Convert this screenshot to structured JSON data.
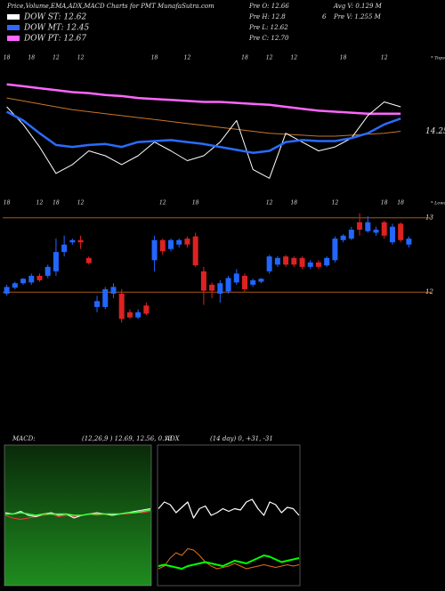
{
  "header": {
    "title": "Price,Volume,EMA,ADX,MACD Charts for PMT MunafaSutra.com"
  },
  "info": [
    "Pre  O: 12.66",
    "Avg V: 0.129 M",
    "Pre  H: 12.8",
    "6",
    "Pre  V: 1.255 M",
    "Pre  L: 12.62",
    "Pre  C: 12.70"
  ],
  "indicators": [
    {
      "label": "DOW ST: 12.62",
      "color": "#ffffff"
    },
    {
      "label": "DOW MT: 12.45",
      "color": "#3366ff"
    },
    {
      "label": "DOW PT: 12.67",
      "color": "#ff66ff"
    }
  ],
  "chart_data": [
    {
      "type": "line",
      "annotation": "* Tops",
      "x": [
        0,
        2,
        4,
        6,
        8,
        10,
        12,
        14,
        16,
        18,
        20,
        22,
        24,
        26,
        28,
        30,
        32,
        34,
        36,
        38,
        40,
        42,
        44,
        46,
        48
      ],
      "xlim": [
        -0.5,
        49.5
      ],
      "xticks": [
        {
          "value": 0,
          "label": "18"
        },
        {
          "value": 3,
          "label": "18"
        },
        {
          "value": 6,
          "label": "12"
        },
        {
          "value": 9,
          "label": "12"
        },
        {
          "value": 18,
          "label": "18"
        },
        {
          "value": 22,
          "label": "12"
        },
        {
          "value": 29,
          "label": "18"
        },
        {
          "value": 32,
          "label": "12"
        },
        {
          "value": 35,
          "label": "12"
        },
        {
          "value": 41,
          "label": "18"
        },
        {
          "value": 46,
          "label": "12"
        }
      ],
      "ylim": [
        13.5,
        15
      ],
      "yticks": [
        14.25
      ],
      "grid": false,
      "series": [
        {
          "color": "#ff66ff",
          "width": 2.5,
          "values": [
            14.73,
            14.71,
            14.69,
            14.67,
            14.65,
            14.64,
            14.62,
            14.61,
            14.59,
            14.58,
            14.57,
            14.56,
            14.55,
            14.55,
            14.54,
            14.53,
            14.52,
            14.5,
            14.48,
            14.46,
            14.45,
            14.44,
            14.43,
            14.43,
            14.43
          ]
        },
        {
          "color": "#c8762a",
          "width": 1,
          "values": [
            14.59,
            14.56,
            14.53,
            14.5,
            14.47,
            14.45,
            14.43,
            14.41,
            14.39,
            14.37,
            14.35,
            14.33,
            14.31,
            14.29,
            14.27,
            14.25,
            14.23,
            14.22,
            14.21,
            14.2,
            14.2,
            14.21,
            14.22,
            14.23,
            14.25
          ]
        },
        {
          "color": "#ffffff",
          "width": 1,
          "values": [
            14.5,
            14.32,
            14.09,
            13.82,
            13.91,
            14.05,
            14.0,
            13.91,
            14.0,
            14.14,
            14.05,
            13.95,
            14.0,
            14.14,
            14.36,
            13.86,
            13.77,
            14.23,
            14.14,
            14.05,
            14.09,
            14.18,
            14.41,
            14.55,
            14.5
          ]
        },
        {
          "color": "#2a6cff",
          "width": 2.5,
          "values": [
            14.45,
            14.36,
            14.23,
            14.11,
            14.09,
            14.11,
            14.12,
            14.09,
            14.14,
            14.15,
            14.16,
            14.14,
            14.12,
            14.09,
            14.06,
            14.03,
            14.05,
            14.14,
            14.16,
            14.15,
            14.15,
            14.18,
            14.23,
            14.32,
            14.38
          ]
        }
      ]
    },
    {
      "type": "candlestick",
      "annotation": "* Lows",
      "x": [
        0,
        1,
        2,
        3,
        4,
        5,
        6,
        7,
        8,
        9,
        10,
        11,
        12,
        13,
        14,
        15,
        16,
        17,
        18,
        19,
        20,
        21,
        22,
        23,
        24,
        25,
        26,
        27,
        28,
        29,
        30,
        31,
        32,
        33,
        34,
        35,
        36,
        37,
        38,
        39,
        40,
        41,
        42,
        43,
        44,
        45,
        46,
        47,
        48,
        49
      ],
      "xlim": [
        -0.5,
        49.5
      ],
      "xticks": [
        {
          "value": 0,
          "label": "18"
        },
        {
          "value": 4,
          "label": "12"
        },
        {
          "value": 6,
          "label": "18"
        },
        {
          "value": 9,
          "label": "12"
        },
        {
          "value": 19,
          "label": "12"
        },
        {
          "value": 23,
          "label": "18"
        },
        {
          "value": 32,
          "label": "12"
        },
        {
          "value": 35,
          "label": "18"
        },
        {
          "value": 40,
          "label": "12"
        },
        {
          "value": 46,
          "label": "18"
        },
        {
          "value": 48,
          "label": "18"
        }
      ],
      "ylim": [
        11.5,
        13.2
      ],
      "yticks": [
        12,
        13
      ],
      "grid": true,
      "grid_color": "#a8561c",
      "up_color": "#2266ff",
      "down_color": "#dd2222",
      "open": [
        11.98,
        12.06,
        12.12,
        12.13,
        12.22,
        12.22,
        12.28,
        12.54,
        12.67,
        12.7,
        12.46,
        11.8,
        11.8,
        11.98,
        11.98,
        11.73,
        11.66,
        11.82,
        12.43,
        12.7,
        12.58,
        12.64,
        12.72,
        12.75,
        12.28,
        12.1,
        11.98,
        12.01,
        12.13,
        12.22,
        12.1,
        12.14,
        12.28,
        12.37,
        12.48,
        12.46,
        12.46,
        12.34,
        12.4,
        12.36,
        12.43,
        12.7,
        12.72,
        12.94,
        12.82,
        12.8,
        12.94,
        12.67,
        12.92,
        12.64
      ],
      "high": [
        12.1,
        12.14,
        12.19,
        12.25,
        12.25,
        12.37,
        12.72,
        12.76,
        12.72,
        12.76,
        12.48,
        11.95,
        12.07,
        12.12,
        12.04,
        11.77,
        11.77,
        11.86,
        12.76,
        12.72,
        12.72,
        12.72,
        12.75,
        12.8,
        12.34,
        12.13,
        12.16,
        12.22,
        12.31,
        12.25,
        12.18,
        12.19,
        12.5,
        12.48,
        12.5,
        12.48,
        12.48,
        12.43,
        12.43,
        12.48,
        12.75,
        12.78,
        12.88,
        13.06,
        13.02,
        12.88,
        12.96,
        12.92,
        12.94,
        12.75
      ],
      "low": [
        11.95,
        12.04,
        12.1,
        12.1,
        12.14,
        12.19,
        12.22,
        12.48,
        12.64,
        12.58,
        12.37,
        11.73,
        11.77,
        11.92,
        11.59,
        11.64,
        11.64,
        11.69,
        12.28,
        12.5,
        12.55,
        12.6,
        12.6,
        12.34,
        11.83,
        11.92,
        11.86,
        11.98,
        12.1,
        12.01,
        12.07,
        12.12,
        12.25,
        12.34,
        12.34,
        12.34,
        12.31,
        12.31,
        12.31,
        12.34,
        12.4,
        12.67,
        12.7,
        12.76,
        12.8,
        12.76,
        12.72,
        12.64,
        12.67,
        12.6
      ],
      "close": [
        12.07,
        12.12,
        12.18,
        12.22,
        12.16,
        12.34,
        12.54,
        12.64,
        12.7,
        12.67,
        12.39,
        11.88,
        12.04,
        12.07,
        11.64,
        11.66,
        11.73,
        11.71,
        12.7,
        12.55,
        12.7,
        12.7,
        12.64,
        12.36,
        12.02,
        12.02,
        12.12,
        12.19,
        12.25,
        12.04,
        12.16,
        12.18,
        12.48,
        12.46,
        12.37,
        12.37,
        12.34,
        12.4,
        12.34,
        12.46,
        12.72,
        12.76,
        12.84,
        12.84,
        12.94,
        12.84,
        12.76,
        12.88,
        12.7,
        12.72
      ]
    },
    {
      "type": "line",
      "title": "MACD:",
      "subtitle": "(12,26,9 ) 12.69, 12.56, 0.13",
      "x": [
        0,
        1,
        2,
        3,
        4,
        5,
        6,
        7,
        8,
        9,
        10,
        11,
        12,
        13,
        14,
        15,
        16,
        17,
        18,
        19
      ],
      "xlim": [
        0,
        19
      ],
      "ylim": [
        -0.5,
        0.5
      ],
      "series": [
        {
          "color": "#ff3333",
          "width": 1,
          "values": [
            0.0,
            -0.02,
            -0.03,
            -0.02,
            -0.01,
            0.0,
            0.01,
            -0.01,
            0.0,
            -0.01,
            0.0,
            0.01,
            0.0,
            0.01,
            0.0,
            0.01,
            0.01,
            0.02,
            0.02,
            0.03
          ]
        },
        {
          "color": "#ffffff",
          "width": 1,
          "values": [
            0.02,
            0.01,
            0.03,
            0.0,
            -0.01,
            0.01,
            0.02,
            0.0,
            0.01,
            -0.02,
            0.0,
            0.01,
            0.02,
            0.01,
            0.0,
            0.01,
            0.02,
            0.03,
            0.04,
            0.05
          ]
        },
        {
          "color": "#44ff44",
          "width": 1.5,
          "values": [
            0.01,
            0.01,
            0.02,
            0.01,
            0.0,
            0.01,
            0.01,
            0.01,
            0.01,
            0.0,
            0.0,
            0.01,
            0.01,
            0.01,
            0.01,
            0.01,
            0.02,
            0.02,
            0.03,
            0.04
          ]
        }
      ]
    },
    {
      "type": "line",
      "title": "ADX",
      "subtitle": "(14 day) 0, +31, -31",
      "x": [
        0,
        1,
        2,
        3,
        4,
        5,
        6,
        7,
        8,
        9,
        10,
        11,
        12,
        13,
        14,
        15,
        16,
        17,
        18,
        19,
        20,
        21,
        22,
        23,
        24
      ],
      "xlim": [
        0,
        24
      ],
      "ylim": [
        0,
        100
      ],
      "series": [
        {
          "color": "#ffffff",
          "width": 1.2,
          "values": [
            55,
            60,
            58,
            52,
            56,
            60,
            48,
            55,
            57,
            50,
            52,
            55,
            53,
            55,
            54,
            60,
            62,
            55,
            50,
            60,
            58,
            52,
            56,
            55,
            50
          ]
        },
        {
          "color": "#e0701c",
          "width": 1,
          "values": [
            10,
            12,
            18,
            22,
            20,
            25,
            24,
            20,
            15,
            12,
            10,
            11,
            12,
            14,
            12,
            10,
            11,
            12,
            13,
            12,
            11,
            12,
            13,
            12,
            13
          ]
        },
        {
          "color": "#00ff00",
          "width": 2,
          "values": [
            12,
            13,
            12,
            11,
            10,
            12,
            13,
            14,
            15,
            14,
            13,
            12,
            14,
            16,
            15,
            14,
            16,
            18,
            20,
            19,
            17,
            15,
            16,
            17,
            18
          ]
        }
      ]
    }
  ]
}
